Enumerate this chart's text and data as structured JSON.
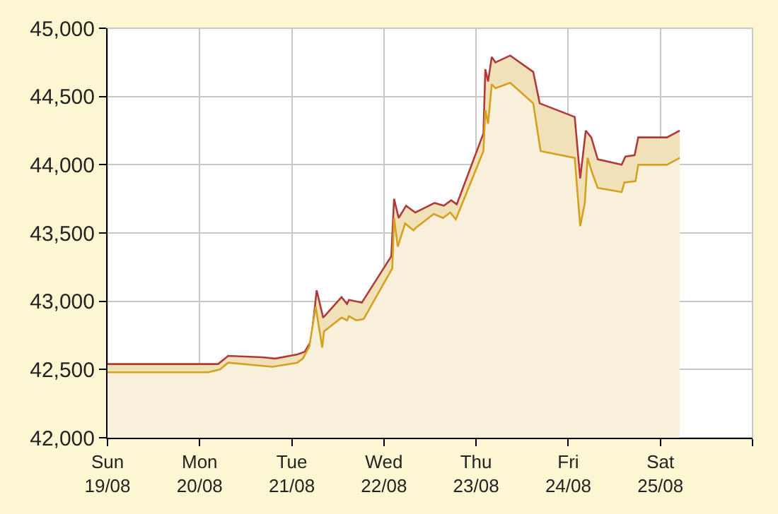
{
  "chart_data": {
    "type": "area",
    "xlim": [
      "--08-19",
      "--08-26"
    ],
    "ylim": [
      42000,
      45000
    ],
    "xticks": [
      {
        "value": "--08-19",
        "label": "Sun\n19/08"
      },
      {
        "value": "--08-20",
        "label": "Mon\n20/08"
      },
      {
        "value": "--08-21",
        "label": "Tue\n21/08"
      },
      {
        "value": "--08-22",
        "label": "Wed\n22/08"
      },
      {
        "value": "--08-23",
        "label": "Thu\n23/08"
      },
      {
        "value": "--08-24",
        "label": "Fri\n24/08"
      },
      {
        "value": "--08-25",
        "label": "Sat\n25/08"
      },
      {
        "value": "--08-26",
        "label": null
      }
    ],
    "yticks": [
      {
        "value": 42000,
        "label": "42,000"
      },
      {
        "value": 42500,
        "label": "42,500"
      },
      {
        "value": 43000,
        "label": "43,000"
      },
      {
        "value": 43500,
        "label": "43,500"
      },
      {
        "value": 44000,
        "label": "44,000"
      },
      {
        "value": 44500,
        "label": "44,500"
      },
      {
        "value": 45000,
        "label": "45,000"
      }
    ],
    "grid": true,
    "legend": false,
    "marker": "none",
    "line_style": "solid",
    "series": [
      {
        "color": "#d4a020",
        "x": [
          "--08-19T00:00",
          "--08-20T02:10",
          "--08-20T05:17",
          "--08-20T07:26",
          "--08-20T18:58",
          "--08-21T01:26",
          "--08-21T02:53",
          "--08-21T04:34",
          "--08-21T06:14",
          "--08-21T07:55",
          "--08-21T08:24",
          "--08-21T12:58",
          "--08-21T14:24",
          "--08-21T14:53",
          "--08-21T16:48",
          "--08-21T18:43",
          "--08-22T02:10",
          "--08-22T02:38",
          "--08-22T03:36",
          "--08-22T05:31",
          "--08-22T07:41",
          "--08-22T08:24",
          "--08-22T12:58",
          "--08-22T15:22",
          "--08-22T17:17",
          "--08-22T18:43",
          "--08-23T01:55",
          "--08-23T02:24",
          "--08-23T03:07",
          "--08-23T04:05",
          "--08-23T05:02",
          "--08-23T08:53",
          "--08-23T14:53",
          "--08-23T16:48",
          "--08-24T01:41",
          "--08-24T03:07",
          "--08-24T04:19",
          "--08-24T05:02",
          "--08-24T06:14",
          "--08-24T07:41",
          "--08-24T13:55",
          "--08-24T14:38",
          "--08-24T17:31",
          "--08-24T18:14",
          "--08-25T01:41",
          "--08-25T05:02"
        ],
        "values": [
          42480,
          42480,
          42500,
          42550,
          42520,
          42550,
          42580,
          42670,
          42960,
          42660,
          42780,
          42880,
          42860,
          42890,
          42860,
          42870,
          43240,
          43610,
          43400,
          43570,
          43520,
          43540,
          43640,
          43610,
          43650,
          43600,
          44100,
          44400,
          44300,
          44590,
          44560,
          44600,
          44450,
          44100,
          44050,
          43550,
          43720,
          44050,
          43940,
          43830,
          43800,
          43870,
          43880,
          44000,
          44000,
          44050
        ]
      },
      {
        "color": "#b03a3a",
        "x": [
          "--08-19T00:00",
          "--08-20T04:48",
          "--08-20T07:26",
          "--08-20T16:19",
          "--08-20T19:41",
          "--08-21T01:26",
          "--08-21T03:22",
          "--08-21T05:02",
          "--08-21T06:29",
          "--08-21T08:10",
          "--08-21T12:58",
          "--08-21T14:24",
          "--08-21T14:53",
          "--08-21T18:14",
          "--08-22T01:55",
          "--08-22T02:38",
          "--08-22T03:50",
          "--08-22T05:46",
          "--08-22T08:10",
          "--08-22T13:12",
          "--08-22T15:36",
          "--08-22T17:31",
          "--08-22T18:58",
          "--08-23T01:55",
          "--08-23T02:24",
          "--08-23T03:07",
          "--08-23T04:05",
          "--08-23T05:02",
          "--08-23T08:53",
          "--08-23T14:53",
          "--08-23T16:34",
          "--08-24T01:41",
          "--08-24T03:07",
          "--08-24T04:34",
          "--08-24T06:00",
          "--08-24T07:41",
          "--08-24T13:55",
          "--08-24T14:53",
          "--08-24T17:17",
          "--08-24T18:14",
          "--08-25T01:41",
          "--08-25T05:02"
        ],
        "values": [
          42540,
          42540,
          42600,
          42590,
          42580,
          42610,
          42630,
          42710,
          43080,
          42880,
          43030,
          42980,
          43010,
          42990,
          43330,
          43750,
          43610,
          43700,
          43650,
          43720,
          43700,
          43740,
          43710,
          44230,
          44700,
          44610,
          44790,
          44750,
          44800,
          44680,
          44450,
          44350,
          43900,
          44250,
          44200,
          44040,
          44000,
          44060,
          44070,
          44200,
          44200,
          44250
        ]
      }
    ]
  }
}
